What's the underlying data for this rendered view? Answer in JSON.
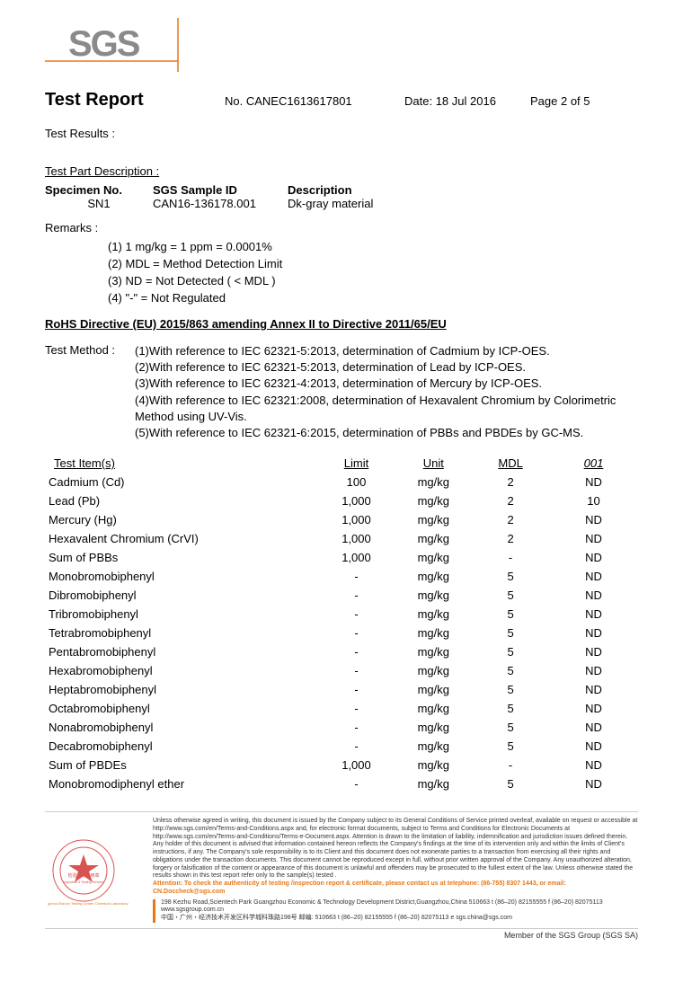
{
  "logo": {
    "text": "SGS",
    "accent_color": "#e67817",
    "fill": "#8a8a8a"
  },
  "header": {
    "title": "Test Report",
    "doc_no_label": "No.",
    "doc_no": "CANEC1613617801",
    "date_label": "Date:",
    "date": "18 Jul 2016",
    "page": "Page 2 of 5"
  },
  "labels": {
    "test_results": "Test Results :",
    "test_part_desc": "Test Part Description :",
    "specimen_no": "Specimen No.",
    "sgs_sample_id": "SGS Sample ID",
    "description": "Description",
    "remarks": "Remarks :",
    "test_method": "Test Method :",
    "test_items": "Test Item(s)",
    "limit": "Limit",
    "unit": "Unit",
    "mdl": "MDL",
    "result_col": "001"
  },
  "specimen": {
    "no": "SN1",
    "sgs_id": "CAN16-136178.001",
    "desc": "Dk-gray material"
  },
  "remarks": [
    "(1) 1 mg/kg = 1 ppm = 0.0001%",
    "(2) MDL = Method Detection Limit",
    "(3) ND = Not Detected ( < MDL )",
    "(4) \"-\" = Not Regulated"
  ],
  "rohs_title": "RoHS Directive (EU) 2015/863 amending Annex II to Directive 2011/65/EU",
  "methods": [
    "(1)With reference to IEC 62321-5:2013, determination of Cadmium by ICP-OES.",
    "(2)With reference to IEC 62321-5:2013, determination of Lead by ICP-OES.",
    "(3)With reference to IEC 62321-4:2013, determination of Mercury by ICP-OES.",
    "(4)With reference to IEC 62321:2008, determination of Hexavalent Chromium by Colorimetric Method using UV-Vis.",
    "(5)With reference to IEC 62321-6:2015, determination of PBBs and PBDEs by GC-MS."
  ],
  "results": {
    "columns_width": {
      "item": "46%",
      "limit": "13%",
      "unit": "13%",
      "mdl": "13%",
      "result": "15%"
    },
    "rows": [
      {
        "item": "Cadmium (Cd)",
        "limit": "100",
        "unit": "mg/kg",
        "mdl": "2",
        "result": "ND"
      },
      {
        "item": "Lead (Pb)",
        "limit": "1,000",
        "unit": "mg/kg",
        "mdl": "2",
        "result": "10"
      },
      {
        "item": "Mercury (Hg)",
        "limit": "1,000",
        "unit": "mg/kg",
        "mdl": "2",
        "result": "ND"
      },
      {
        "item": "Hexavalent Chromium (CrVI)",
        "limit": "1,000",
        "unit": "mg/kg",
        "mdl": "2",
        "result": "ND"
      },
      {
        "item": "Sum of PBBs",
        "limit": "1,000",
        "unit": "mg/kg",
        "mdl": "-",
        "result": "ND"
      },
      {
        "item": "Monobromobiphenyl",
        "limit": "-",
        "unit": "mg/kg",
        "mdl": "5",
        "result": "ND"
      },
      {
        "item": "Dibromobiphenyl",
        "limit": "-",
        "unit": "mg/kg",
        "mdl": "5",
        "result": "ND"
      },
      {
        "item": "Tribromobiphenyl",
        "limit": "-",
        "unit": "mg/kg",
        "mdl": "5",
        "result": "ND"
      },
      {
        "item": "Tetrabromobiphenyl",
        "limit": "-",
        "unit": "mg/kg",
        "mdl": "5",
        "result": "ND"
      },
      {
        "item": "Pentabromobiphenyl",
        "limit": "-",
        "unit": "mg/kg",
        "mdl": "5",
        "result": "ND"
      },
      {
        "item": "Hexabromobiphenyl",
        "limit": "-",
        "unit": "mg/kg",
        "mdl": "5",
        "result": "ND"
      },
      {
        "item": "Heptabromobiphenyl",
        "limit": "-",
        "unit": "mg/kg",
        "mdl": "5",
        "result": "ND"
      },
      {
        "item": "Octabromobiphenyl",
        "limit": "-",
        "unit": "mg/kg",
        "mdl": "5",
        "result": "ND"
      },
      {
        "item": "Nonabromobiphenyl",
        "limit": "-",
        "unit": "mg/kg",
        "mdl": "5",
        "result": "ND"
      },
      {
        "item": "Decabromobiphenyl",
        "limit": "-",
        "unit": "mg/kg",
        "mdl": "5",
        "result": "ND"
      },
      {
        "item": "Sum of PBDEs",
        "limit": "1,000",
        "unit": "mg/kg",
        "mdl": "-",
        "result": "ND"
      },
      {
        "item": "Monobromodiphenyl ether",
        "limit": "-",
        "unit": "mg/kg",
        "mdl": "5",
        "result": "ND"
      }
    ]
  },
  "footer": {
    "disclaimer": "Unless otherwise agreed in writing, this document is issued by the Company subject to its General Conditions of Service printed overleaf, available on request or accessible at http://www.sgs.com/en/Terms-and-Conditions.aspx and, for electronic format documents, subject to Terms and Conditions for Electronic Documents at http://www.sgs.com/en/Terms-and-Conditions/Terms-e-Document.aspx. Attention is drawn to the limitation of liability, indemnification and jurisdiction issues defined therein. Any holder of this document is advised that information contained hereon reflects the Company's findings at the time of its intervention only and within the limits of Client's instructions, if any. The Company's sole responsibility is to its Client and this document does not exonerate parties to a transaction from exercising all their rights and obligations under the transaction documents. This document cannot be reproduced except in full, without prior written approval of the Company. Any unauthorized alteration, forgery or falsification of the content or appearance of this document is unlawful and offenders may be prosecuted to the fullest extent of the law. Unless otherwise stated the results shown in this test report refer only to the sample(s) tested .",
    "attention": "Attention: To check the authenticity of testing /inspection report & certificate, please contact us at telephone: (86-755) 8307 1443, or email: CN.Doccheck@sgs.com",
    "addr_en": "198 Kezhu Road,Scientech Park Guangzhou Economic & Technology Development District,Guangzhou,China 510663   t (86–20) 82155555   f (86–20) 82075113   www.sgsgroup.com.cn",
    "addr_cn": "中国・广州・经济技术开发区科学城科珠路198号          邮编: 510663   t (86–20) 82155555   f (86–20) 82075113   e sgs.china@sgs.com",
    "member": "Member of the SGS Group (SGS SA)",
    "stamp_text_cn": "检验检测专用章",
    "stamp_text_en": "Inspection & Testing Services",
    "stamp_branch": "Guangzhou Branch Testing Center Chemical Laboratory"
  }
}
